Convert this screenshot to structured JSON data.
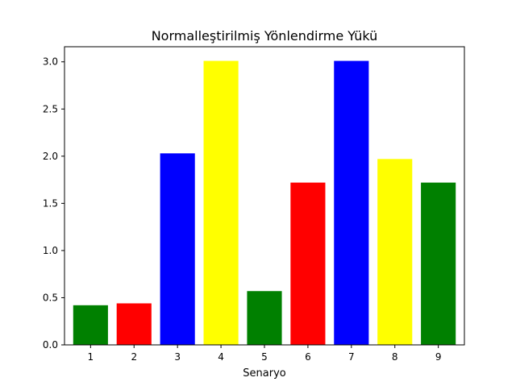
{
  "chart_data": {
    "type": "bar",
    "title": "Normalleştirilmiş Yönlendirme Yükü",
    "xlabel": "Senaryo",
    "ylabel": "",
    "categories": [
      "1",
      "2",
      "3",
      "4",
      "5",
      "6",
      "7",
      "8",
      "9"
    ],
    "values": [
      0.42,
      0.44,
      2.03,
      3.01,
      0.57,
      1.72,
      3.01,
      1.97,
      1.72
    ],
    "colors": [
      "#008000",
      "#ff0000",
      "#0000ff",
      "#ffff00",
      "#008000",
      "#ff0000",
      "#0000ff",
      "#ffff00",
      "#008000"
    ],
    "yticks": [
      "0.0",
      "0.5",
      "1.0",
      "1.5",
      "2.0",
      "2.5",
      "3.0"
    ],
    "ylim": [
      0,
      3.16
    ],
    "grid": false,
    "legend": "none"
  }
}
